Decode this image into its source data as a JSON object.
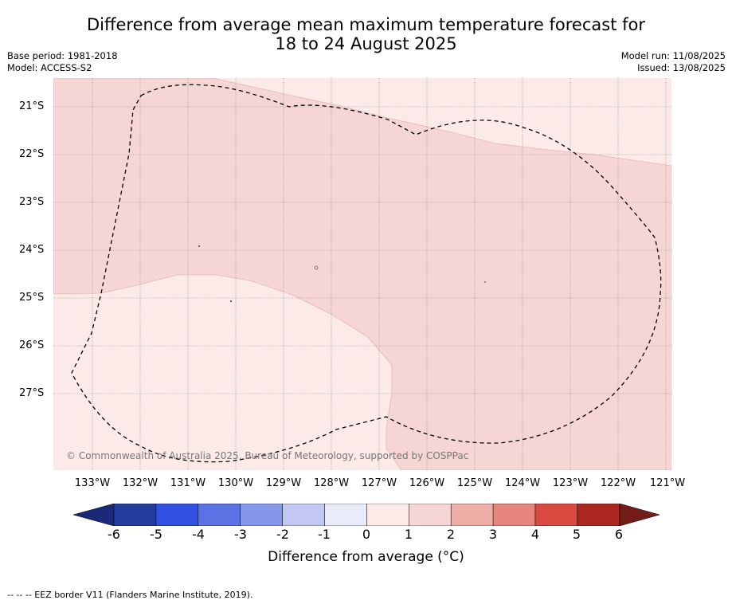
{
  "title": {
    "line1": "Difference from average mean maximum temperature forecast for",
    "line2": "18 to 24 August 2025"
  },
  "meta_left": {
    "base_period": "Base period: 1981-2018",
    "model": "Model: ACCESS-S2"
  },
  "meta_right": {
    "model_run": "Model run: 11/08/2025",
    "issued": "Issued: 13/08/2025"
  },
  "map": {
    "lat_labels": [
      "21°S",
      "22°S",
      "23°S",
      "24°S",
      "25°S",
      "26°S",
      "27°S"
    ],
    "lon_labels": [
      "133°W",
      "132°W",
      "131°W",
      "130°W",
      "129°W",
      "128°W",
      "127°W",
      "126°W",
      "125°W",
      "124°W",
      "123°W",
      "122°W",
      "121°W"
    ],
    "copyright": "© Commonwealth of Australia 2025, Bureau of Meteorology, supported by COSPPac",
    "fill_colors": {
      "band_0_to_1": "#fbeae8",
      "band_1_to_2": "#f5d6d4"
    }
  },
  "colorbar": {
    "ticks": [
      "-6",
      "-5",
      "-4",
      "-3",
      "-2",
      "-1",
      "0",
      "1",
      "2",
      "3",
      "4",
      "5",
      "6"
    ],
    "label": "Difference from average (°C)",
    "colors": [
      "#243b9e",
      "#2f50e0",
      "#5b72e4",
      "#8597ea",
      "#c2c8f3",
      "#e9ebfb",
      "#fbeae8",
      "#f5d6d4",
      "#eeafa9",
      "#e7867e",
      "#d94a40",
      "#aa2821"
    ],
    "low_extend_color": "#1a2a78",
    "high_extend_color": "#731d19"
  },
  "footnote": "-- -- -- EEZ border V11 (Flanders Marine Institute, 2019)."
}
